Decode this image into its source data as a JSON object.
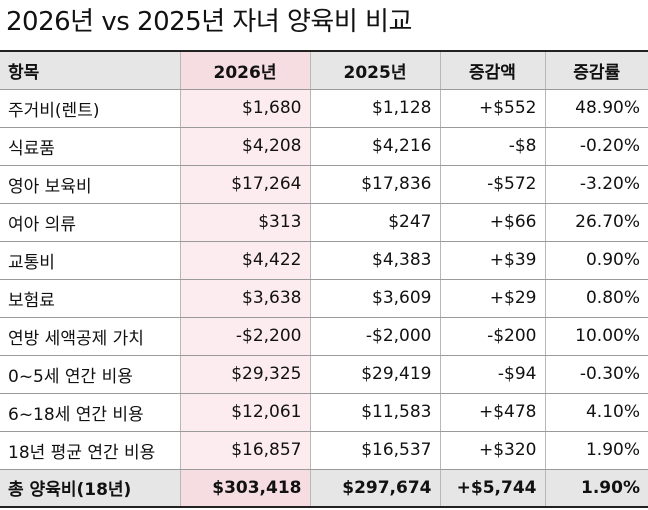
{
  "title": "2026년 vs 2025년 자녀 양육비 비교",
  "headers": [
    "항목",
    "2026년",
    "2025년",
    "증감액",
    "증감률"
  ],
  "rows": [
    [
      "주거비(렌트)",
      "$1,680",
      "$1,128",
      "+$552",
      "48.90%"
    ],
    [
      "식료품",
      "$4,208",
      "$4,216",
      "-$8",
      "-0.20%"
    ],
    [
      "영아 보육비",
      "$17,264",
      "$17,836",
      "-$572",
      "-3.20%"
    ],
    [
      "여아 의류",
      "$313",
      "$247",
      "+$66",
      "26.70%"
    ],
    [
      "교통비",
      "$4,422",
      "$4,383",
      "+$39",
      "0.90%"
    ],
    [
      "보험료",
      "$3,638",
      "$3,609",
      "+$29",
      "0.80%"
    ],
    [
      "연방 세액공제 가치",
      "-$2,200",
      "-$2,000",
      "-$200",
      "10.00%"
    ],
    [
      "0~5세 연간 비용",
      "$29,325",
      "$29,419",
      "-$94",
      "-0.30%"
    ],
    [
      "6~18세 연간 비용",
      "$12,061",
      "$11,583",
      "+$478",
      "4.10%"
    ],
    [
      "18년 평균 연간 비용",
      "$16,857",
      "$16,537",
      "+$320",
      "1.90%"
    ]
  ],
  "total": [
    "총 양육비(18년)",
    "$303,418",
    "$297,674",
    "+$5,744",
    "1.90%"
  ],
  "colors": {
    "header_bg": "#e6e6e6",
    "highlight_header": "#f6dde1",
    "highlight_cell": "#fcecef"
  }
}
